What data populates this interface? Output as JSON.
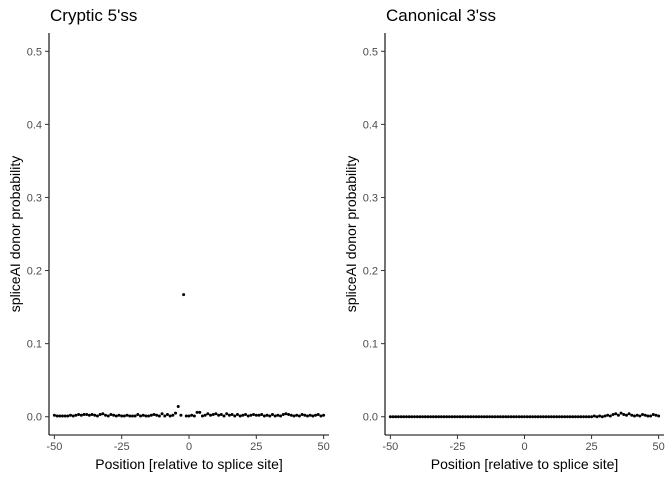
{
  "chart_data": [
    {
      "type": "scatter",
      "title": "Cryptic 5'ss",
      "xlabel": "Position [relative to splice site]",
      "ylabel": "spliceAI donor probability",
      "xlim": [
        -52,
        52
      ],
      "ylim": [
        -0.025,
        0.525
      ],
      "xticks": [
        -50,
        -25,
        0,
        25,
        50
      ],
      "xtick_labels": [
        "-50",
        "-25",
        "0",
        "25",
        "50"
      ],
      "yticks": [
        0.0,
        0.1,
        0.2,
        0.3,
        0.4,
        0.5
      ],
      "ytick_labels": [
        "0.0",
        "0.1",
        "0.2",
        "0.3",
        "0.4",
        "0.5"
      ],
      "grid": false,
      "legend": "none",
      "point_color": "#000000",
      "x": [
        -50,
        -49,
        -48,
        -47,
        -46,
        -45,
        -44,
        -43,
        -42,
        -41,
        -40,
        -39,
        -38,
        -37,
        -36,
        -35,
        -34,
        -33,
        -32,
        -31,
        -30,
        -29,
        -28,
        -27,
        -26,
        -25,
        -24,
        -23,
        -22,
        -21,
        -20,
        -19,
        -18,
        -17,
        -16,
        -15,
        -14,
        -13,
        -12,
        -11,
        -10,
        -9,
        -8,
        -7,
        -6,
        -5,
        -4,
        -3,
        -2,
        -1,
        0,
        1,
        2,
        3,
        4,
        5,
        6,
        7,
        8,
        9,
        10,
        11,
        12,
        13,
        14,
        15,
        16,
        17,
        18,
        19,
        20,
        21,
        22,
        23,
        24,
        25,
        26,
        27,
        28,
        29,
        30,
        31,
        32,
        33,
        34,
        35,
        36,
        37,
        38,
        39,
        40,
        41,
        42,
        43,
        44,
        45,
        46,
        47,
        48,
        49,
        50
      ],
      "y": [
        0.002,
        0.001,
        0.001,
        0.001,
        0.001,
        0.001,
        0.002,
        0.001,
        0.002,
        0.003,
        0.002,
        0.003,
        0.003,
        0.002,
        0.003,
        0.002,
        0.001,
        0.003,
        0.004,
        0.002,
        0.001,
        0.003,
        0.002,
        0.001,
        0.002,
        0.001,
        0.001,
        0.002,
        0.001,
        0.001,
        0.001,
        0.003,
        0.001,
        0.002,
        0.001,
        0.001,
        0.002,
        0.003,
        0.002,
        0.001,
        0.004,
        0.001,
        0.003,
        0.001,
        0.002,
        0.005,
        0.014,
        0.002,
        0.167,
        0.001,
        0.001,
        0.002,
        0.001,
        0.006,
        0.006,
        0.001,
        0.002,
        0.004,
        0.002,
        0.003,
        0.004,
        0.002,
        0.003,
        0.001,
        0.004,
        0.002,
        0.003,
        0.001,
        0.003,
        0.001,
        0.002,
        0.003,
        0.001,
        0.002,
        0.003,
        0.002,
        0.002,
        0.003,
        0.001,
        0.002,
        0.001,
        0.003,
        0.001,
        0.002,
        0.001,
        0.003,
        0.004,
        0.003,
        0.002,
        0.001,
        0.002,
        0.001,
        0.003,
        0.002,
        0.001,
        0.002,
        0.001,
        0.002,
        0.003,
        0.001,
        0.002
      ]
    },
    {
      "type": "scatter",
      "title": "Canonical 3'ss",
      "xlabel": "Position [relative to splice site]",
      "ylabel": "spliceAI donor probability",
      "xlim": [
        -52,
        52
      ],
      "ylim": [
        -0.025,
        0.525
      ],
      "xticks": [
        -50,
        -25,
        0,
        25,
        50
      ],
      "xtick_labels": [
        "-50",
        "-25",
        "0",
        "25",
        "50"
      ],
      "yticks": [
        0.0,
        0.1,
        0.2,
        0.3,
        0.4,
        0.5
      ],
      "ytick_labels": [
        "0.0",
        "0.1",
        "0.2",
        "0.3",
        "0.4",
        "0.5"
      ],
      "grid": false,
      "legend": "none",
      "point_color": "#000000",
      "x": [
        -50,
        -49,
        -48,
        -47,
        -46,
        -45,
        -44,
        -43,
        -42,
        -41,
        -40,
        -39,
        -38,
        -37,
        -36,
        -35,
        -34,
        -33,
        -32,
        -31,
        -30,
        -29,
        -28,
        -27,
        -26,
        -25,
        -24,
        -23,
        -22,
        -21,
        -20,
        -19,
        -18,
        -17,
        -16,
        -15,
        -14,
        -13,
        -12,
        -11,
        -10,
        -9,
        -8,
        -7,
        -6,
        -5,
        -4,
        -3,
        -2,
        -1,
        0,
        1,
        2,
        3,
        4,
        5,
        6,
        7,
        8,
        9,
        10,
        11,
        12,
        13,
        14,
        15,
        16,
        17,
        18,
        19,
        20,
        21,
        22,
        23,
        24,
        25,
        26,
        27,
        28,
        29,
        30,
        31,
        32,
        33,
        34,
        35,
        36,
        37,
        38,
        39,
        40,
        41,
        42,
        43,
        44,
        45,
        46,
        47,
        48,
        49,
        50
      ],
      "y": [
        0,
        0,
        0,
        0,
        0,
        0,
        0,
        0,
        0,
        0,
        0,
        0,
        0,
        0,
        0,
        0,
        0,
        0,
        0,
        0,
        0,
        0,
        0,
        0,
        0,
        0,
        0,
        0,
        0,
        0,
        0,
        0,
        0,
        0,
        0,
        0,
        0,
        0,
        0,
        0,
        0,
        0,
        0,
        0,
        0,
        0,
        0,
        0,
        0,
        0,
        0,
        0,
        0,
        0,
        0,
        0,
        0,
        0,
        0,
        0,
        0,
        0,
        0,
        0,
        0,
        0,
        0,
        0,
        0,
        0,
        0,
        0,
        0,
        0,
        0,
        0,
        0.001,
        0,
        0.001,
        0,
        0.001,
        0.002,
        0.001,
        0.003,
        0.004,
        0.002,
        0.005,
        0.003,
        0.002,
        0.004,
        0.002,
        0.001,
        0.002,
        0.001,
        0.003,
        0.002,
        0.001,
        0.001,
        0.003,
        0.002,
        0.001
      ]
    }
  ]
}
